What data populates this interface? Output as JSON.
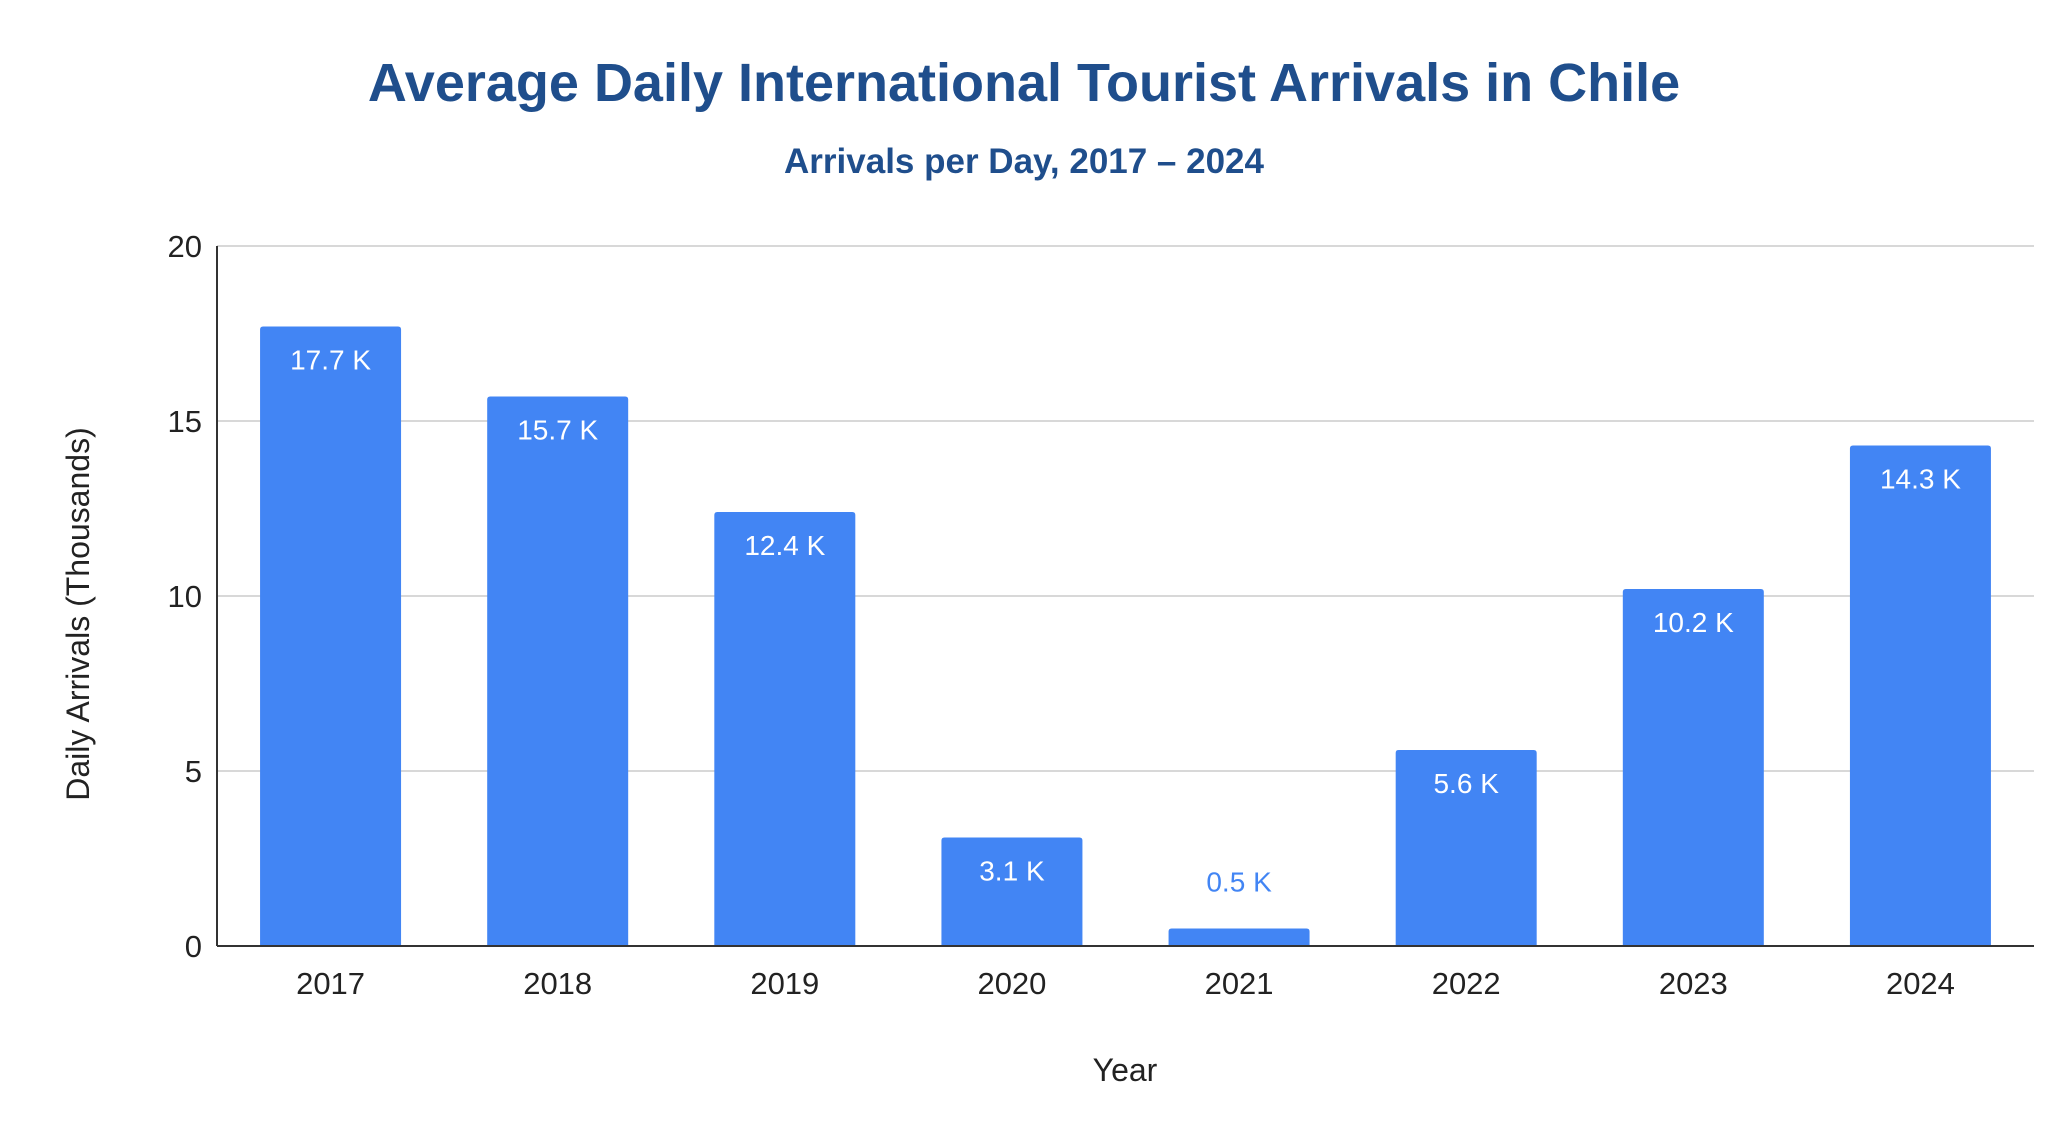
{
  "chart_data": {
    "type": "bar",
    "title": "Average Daily International Tourist Arrivals in Chile",
    "subtitle": "Arrivals per Day, 2017 – 2024",
    "xlabel": "Year",
    "ylabel": "Daily Arrivals (Thousands)",
    "categories": [
      "2017",
      "2018",
      "2019",
      "2020",
      "2021",
      "2022",
      "2023",
      "2024"
    ],
    "values": [
      17.7,
      15.7,
      12.4,
      3.1,
      0.5,
      5.6,
      10.2,
      14.3
    ],
    "data_labels": [
      "17.7 K",
      "15.7 K",
      "12.4 K",
      "3.1 K",
      "0.5 K",
      "5.6 K",
      "10.2 K",
      "14.3 K"
    ],
    "ylim": [
      0,
      20
    ],
    "yticks": [
      0,
      5,
      10,
      15,
      20
    ],
    "ytick_labels": [
      "0",
      "5",
      "10",
      "15",
      "20"
    ],
    "grid": true,
    "legend": "none",
    "colors": {
      "bar": "#4285f4",
      "title": "#1f4e8c",
      "label_inside": "#ffffff",
      "label_outside": "#4285f4",
      "grid": "#cccccc",
      "axis": "#333333",
      "text": "#222222"
    }
  }
}
